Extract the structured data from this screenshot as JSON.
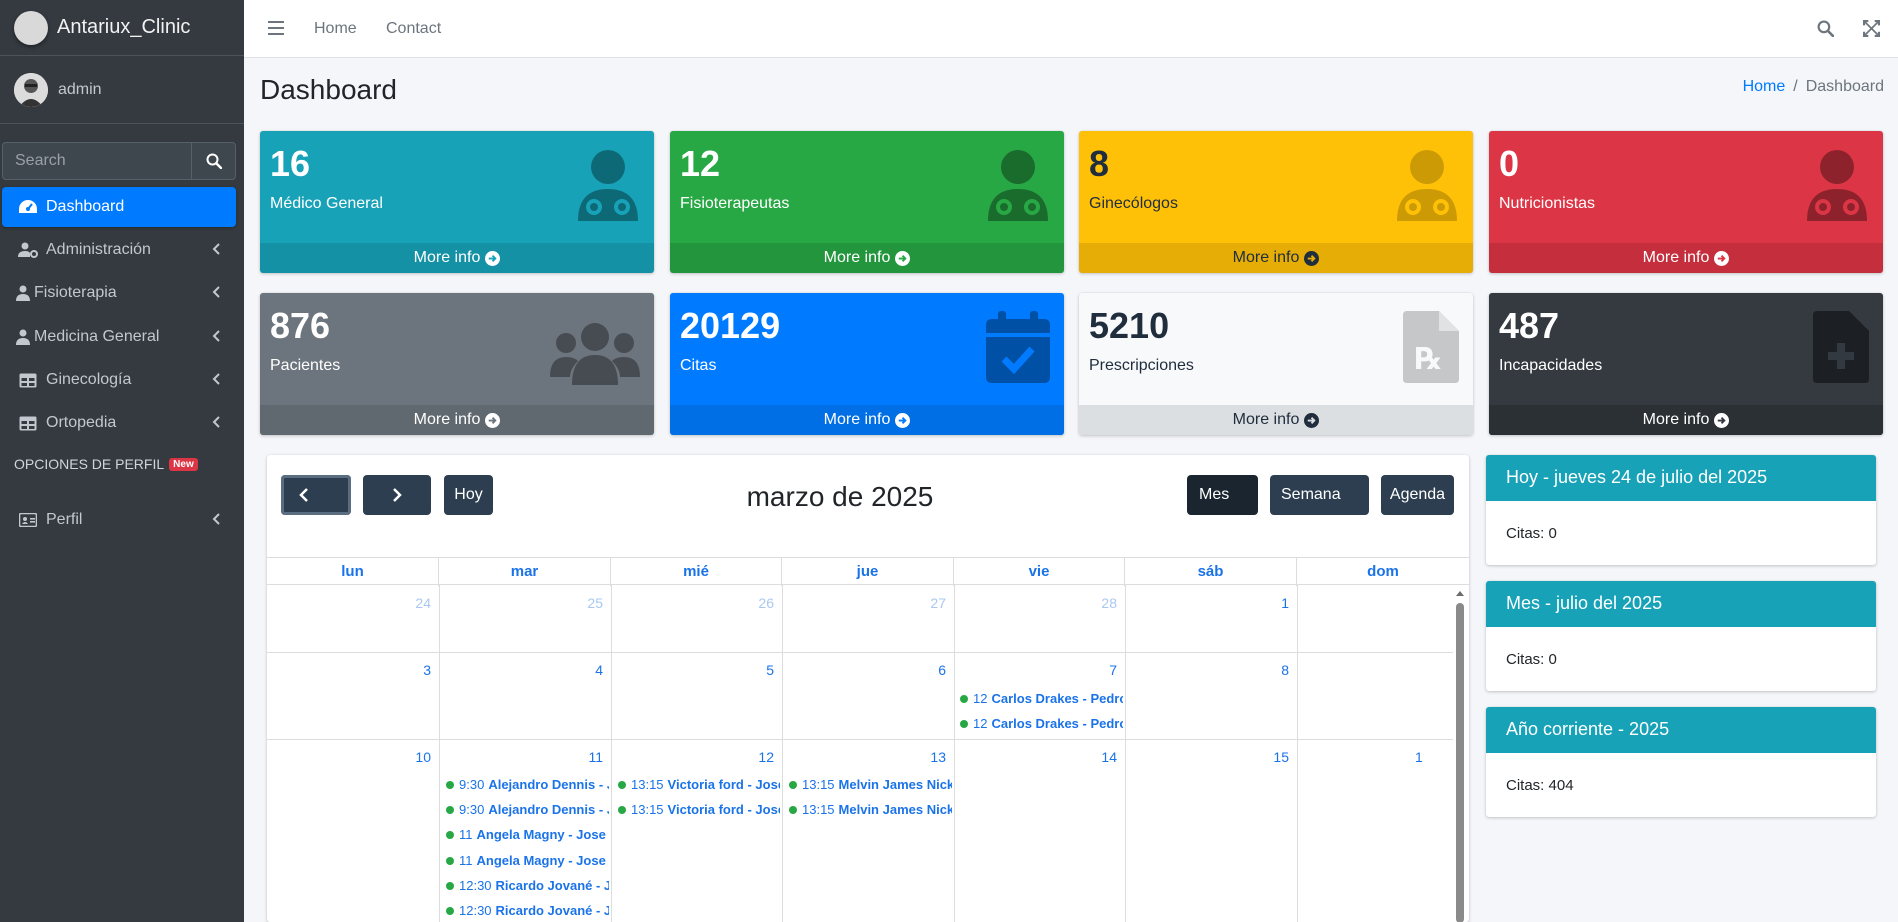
{
  "brand": {
    "name": "Antariux_Clinic"
  },
  "user": {
    "name": "admin"
  },
  "sidebar": {
    "search_placeholder": "Search",
    "items": [
      {
        "label": "Dashboard"
      },
      {
        "label": "Administración"
      },
      {
        "label": "Fisioterapia"
      },
      {
        "label": "Medicina General"
      },
      {
        "label": "Ginecología"
      },
      {
        "label": "Ortopedia"
      }
    ],
    "header": "OPCIONES DE PERFIL",
    "header_badge": "New",
    "profile_item": "Perfil"
  },
  "topnav": {
    "home": "Home",
    "contact": "Contact"
  },
  "page": {
    "title": "Dashboard",
    "breadcrumb": {
      "home": "Home",
      "sep": "/",
      "current": "Dashboard"
    }
  },
  "stats": [
    {
      "value": "16",
      "label": "Médico General",
      "more": "More info",
      "color": "#17a2b8"
    },
    {
      "value": "12",
      "label": "Fisioterapeutas",
      "more": "More info",
      "color": "#28a745"
    },
    {
      "value": "8",
      "label": "Ginecólogos",
      "more": "More info",
      "color": "#ffc107"
    },
    {
      "value": "0",
      "label": "Nutricionistas",
      "more": "More info",
      "color": "#dc3545"
    },
    {
      "value": "876",
      "label": "Pacientes",
      "more": "More info",
      "color": "#6c757d"
    },
    {
      "value": "20129",
      "label": "Citas",
      "more": "More info",
      "color": "#007bff"
    },
    {
      "value": "5210",
      "label": "Prescripciones",
      "more": "More info",
      "color": "#f8f9fa"
    },
    {
      "value": "487",
      "label": "Incapacidades",
      "more": "More info",
      "color": "#343a40"
    }
  ],
  "calendar": {
    "title": "marzo de 2025",
    "today_btn": "Hoy",
    "views": {
      "month": "Mes",
      "week": "Semana",
      "agenda": "Agenda"
    },
    "days": [
      "lun",
      "mar",
      "mié",
      "jue",
      "vie",
      "sáb",
      "dom"
    ],
    "weeks": [
      [
        "24",
        "25",
        "26",
        "27",
        "28",
        "1",
        ""
      ],
      [
        "3",
        "4",
        "5",
        "6",
        "7",
        "8",
        ""
      ],
      [
        "10",
        "11",
        "12",
        "13",
        "14",
        "15",
        "1"
      ]
    ],
    "events": {
      "vie7": [
        {
          "time": "12",
          "name": "Carlos Drakes - Pedro F"
        },
        {
          "time": "12",
          "name": "Carlos Drakes - Pedro F"
        }
      ],
      "mar11": [
        {
          "time": "9:30",
          "name": "Alejandro Dennis - Jo"
        },
        {
          "time": "9:30",
          "name": "Alejandro Dennis - Jo"
        },
        {
          "time": "11",
          "name": "Angela Magny - Jose Da"
        },
        {
          "time": "11",
          "name": "Angela Magny - Jose Da"
        },
        {
          "time": "12:30",
          "name": "Ricardo Jované - Jo"
        },
        {
          "time": "12:30",
          "name": "Ricardo Jované - Jo"
        }
      ],
      "mie12": [
        {
          "time": "13:15",
          "name": "Victoria ford - Jose I"
        },
        {
          "time": "13:15",
          "name": "Victoria ford - Jose I"
        }
      ],
      "jue13": [
        {
          "time": "13:15",
          "name": "Melvin James Nicke"
        },
        {
          "time": "13:15",
          "name": "Melvin James Nicke"
        }
      ]
    }
  },
  "summary": [
    {
      "title": "Hoy - jueves 24 de julio del 2025",
      "body": "Citas: 0"
    },
    {
      "title": "Mes - julio del 2025",
      "body": "Citas: 0"
    },
    {
      "title": "Año corriente - 2025",
      "body": "Citas: 404"
    }
  ]
}
